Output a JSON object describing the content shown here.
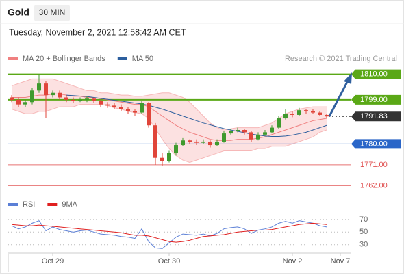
{
  "header": {
    "symbol": "Gold",
    "timeframe": "30 MIN",
    "datetime": "Tuesday, November 2, 2021 12:58:42 AM CET"
  },
  "chart_data": [
    {
      "type": "candlestick",
      "source": "Research © 2021 Trading Central",
      "categories": [
        null,
        null,
        null,
        null,
        null,
        null,
        "Oct 29",
        null,
        null,
        null,
        null,
        null,
        null,
        null,
        null,
        null,
        null,
        null,
        null,
        null,
        null,
        null,
        null,
        "Oct 30",
        null,
        null,
        null,
        null,
        null,
        null,
        null,
        null,
        null,
        null,
        null,
        null,
        null,
        null,
        null,
        null,
        null,
        "Nov 2",
        null,
        null,
        null,
        null,
        null,
        null,
        "Nov 7"
      ],
      "up_color": "#3f9a2e",
      "down_color": "#e0453a",
      "candles": [
        [
          1800,
          1801,
          1798,
          1799
        ],
        [
          1799,
          1800,
          1796,
          1797
        ],
        [
          1797,
          1799,
          1796,
          1798
        ],
        [
          1798,
          1804,
          1797,
          1803
        ],
        [
          1803,
          1810,
          1802,
          1806
        ],
        [
          1806,
          1807,
          1791,
          1801
        ],
        [
          1801,
          1803,
          1800,
          1802
        ],
        [
          1802,
          1803,
          1799,
          1800
        ],
        [
          1800,
          1801,
          1798,
          1799
        ],
        [
          1799,
          1800,
          1797.5,
          1798.5
        ],
        [
          1798.5,
          1800,
          1798,
          1799
        ],
        [
          1799,
          1800.5,
          1798,
          1799.5
        ],
        [
          1799.5,
          1800,
          1797.5,
          1798.5
        ],
        [
          1798.5,
          1799,
          1796,
          1797
        ],
        [
          1797,
          1798,
          1795.5,
          1796.5
        ],
        [
          1796.5,
          1797.5,
          1795,
          1796
        ],
        [
          1796,
          1797,
          1794,
          1795
        ],
        [
          1795,
          1796,
          1793,
          1794
        ],
        [
          1794,
          1795,
          1792,
          1793.5
        ],
        [
          1793.5,
          1798.5,
          1793,
          1797.5
        ],
        [
          1797.5,
          1798,
          1787,
          1788
        ],
        [
          1788,
          1789,
          1771,
          1774
        ],
        [
          1774,
          1776,
          1770.5,
          1772.5
        ],
        [
          1772.5,
          1777,
          1772,
          1776
        ],
        [
          1776,
          1780.5,
          1775,
          1779.5
        ],
        [
          1779.5,
          1782.5,
          1779,
          1781.5
        ],
        [
          1781.5,
          1782,
          1780,
          1781
        ],
        [
          1781,
          1782,
          1779.5,
          1780.5
        ],
        [
          1780.5,
          1782,
          1780,
          1781
        ],
        [
          1781,
          1781.5,
          1778.5,
          1779.5
        ],
        [
          1779.5,
          1782,
          1779,
          1781
        ],
        [
          1781,
          1785.5,
          1780.5,
          1784.5
        ],
        [
          1784.5,
          1786.5,
          1784,
          1785.5
        ],
        [
          1785.5,
          1787,
          1785,
          1786
        ],
        [
          1786,
          1786.5,
          1784,
          1785
        ],
        [
          1785,
          1785.5,
          1781,
          1782
        ],
        [
          1782,
          1785,
          1781.5,
          1784
        ],
        [
          1784,
          1786,
          1783.5,
          1785
        ],
        [
          1785,
          1788,
          1784.5,
          1787
        ],
        [
          1787,
          1792,
          1786.5,
          1791
        ],
        [
          1791,
          1795,
          1790.5,
          1793
        ],
        [
          1793,
          1794,
          1791.5,
          1792.5
        ],
        [
          1792.5,
          1795.5,
          1792,
          1794.5
        ],
        [
          1794.5,
          1795,
          1793,
          1794
        ],
        [
          1794,
          1795,
          1793,
          1793.5
        ],
        [
          1793.5,
          1794,
          1792,
          1792.5
        ],
        [
          1792.5,
          1793,
          1791,
          1791.83
        ],
        null,
        null
      ],
      "series": [
        {
          "name": "MA 20 + Bollinger Bands",
          "color": "#f08080",
          "values": [
            1800,
            1800,
            1800,
            1800.5,
            1801,
            1801,
            1801.5,
            1801.5,
            1801,
            1800.5,
            1800.5,
            1800,
            1800,
            1799.5,
            1799,
            1798.5,
            1798,
            1797.5,
            1797,
            1797,
            1796,
            1794,
            1792,
            1790,
            1788,
            1786.5,
            1785,
            1784,
            1783,
            1782,
            1781.5,
            1781.5,
            1781.5,
            1782,
            1782,
            1782,
            1782.5,
            1783,
            1784,
            1785,
            1786,
            1787,
            1788,
            1789,
            1790,
            1790.5,
            1791,
            null,
            null
          ]
        },
        {
          "name": "MA 50",
          "color": "#2d5f9e",
          "values": [
            null,
            null,
            null,
            null,
            null,
            null,
            null,
            null,
            1801,
            1800.8,
            1800.6,
            1800.4,
            1800,
            1799.6,
            1799.2,
            1798.8,
            1798.4,
            1798,
            1797.6,
            1797.2,
            1796.6,
            1795.8,
            1795,
            1794,
            1793,
            1792,
            1791,
            1790,
            1789,
            1788.2,
            1787.4,
            1786.6,
            1786,
            1785.4,
            1784.8,
            1784.2,
            1783.8,
            1783.4,
            1783.2,
            1783.2,
            1783.4,
            1783.8,
            1784.4,
            1785,
            1786,
            1787,
            1788,
            null,
            null
          ]
        }
      ],
      "bands": {
        "color": "#fbd9d9",
        "upper": [
          1805,
          1806,
          1807,
          1808,
          1808,
          1808,
          1808,
          1807,
          1806,
          1805,
          1804,
          1803,
          1803,
          1802,
          1802,
          1801.5,
          1801,
          1801,
          1800.5,
          1800.5,
          1801,
          1801.5,
          1802,
          1802,
          1801,
          1800,
          1798,
          1795,
          1792,
          1789,
          1787,
          1786,
          1786.5,
          1787,
          1787,
          1787,
          1787,
          1788,
          1789,
          1791,
          1793,
          1794,
          1795,
          1795.5,
          1796,
          1796,
          1796,
          null,
          null
        ],
        "lower": [
          1795,
          1794,
          1793,
          1793,
          1794,
          1794,
          1795,
          1796,
          1796,
          1796,
          1797,
          1797,
          1797,
          1797,
          1796.5,
          1795.5,
          1795,
          1794,
          1793.5,
          1793,
          1791,
          1786.5,
          1782,
          1778,
          1775,
          1773,
          1772,
          1773,
          1774,
          1775,
          1776,
          1777,
          1777,
          1777,
          1777,
          1777,
          1778,
          1778,
          1779,
          1779,
          1779,
          1780,
          1781,
          1782,
          1783,
          1785,
          1786,
          null,
          null
        ]
      },
      "levels": [
        {
          "value": 1810,
          "label": "1810.00",
          "color": "#5aa816",
          "style": "box"
        },
        {
          "value": 1799,
          "label": "1799.00",
          "color": "#5aa816",
          "style": "box"
        },
        {
          "value": 1791.83,
          "label": "1791.83",
          "color": "#333333",
          "style": "current"
        },
        {
          "value": 1780,
          "label": "1780.00",
          "color": "#2a66c8",
          "style": "box"
        },
        {
          "value": 1771,
          "label": "1771.00",
          "color": "#e05050",
          "style": "text"
        },
        {
          "value": 1762,
          "label": "1762.00",
          "color": "#e05050",
          "style": "text"
        }
      ],
      "ylim": [
        1758,
        1814
      ]
    },
    {
      "type": "line",
      "series": [
        {
          "name": "RSI",
          "color": "#5b7fd6",
          "values": [
            60,
            55,
            58,
            64,
            68,
            52,
            58,
            54,
            52,
            50,
            52,
            53,
            50,
            47,
            46,
            45,
            43,
            42,
            40,
            55,
            35,
            25,
            24,
            33,
            42,
            47,
            46,
            45,
            47,
            44,
            48,
            55,
            57,
            58,
            55,
            48,
            53,
            55,
            58,
            64,
            67,
            64,
            68,
            66,
            64,
            60,
            58,
            null,
            null
          ]
        },
        {
          "name": "9MA",
          "color": "#e02020",
          "values": [
            62,
            61,
            60,
            60,
            61,
            60,
            59,
            58,
            57,
            56,
            55,
            54,
            53,
            52,
            51,
            50,
            49,
            47,
            45,
            45,
            44,
            41,
            38,
            35,
            34,
            35,
            37,
            40,
            43,
            44,
            45,
            46,
            48,
            50,
            51,
            52,
            53,
            53,
            54,
            56,
            58,
            60,
            62,
            63,
            64,
            63,
            62,
            null,
            null
          ]
        }
      ],
      "ylim": [
        20,
        85
      ],
      "yticks": [
        70,
        50,
        30
      ]
    }
  ]
}
